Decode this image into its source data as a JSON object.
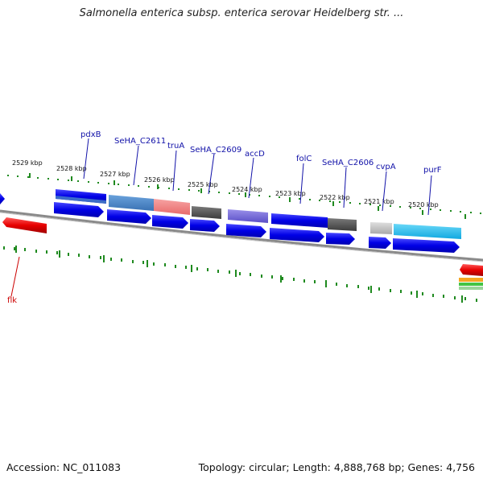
{
  "title": "Salmonella enterica subsp. enterica serovar Heidelberg str. ...",
  "accession": "Accession: NC_011083",
  "summary": "Topology: circular; Length: 4,888,768 bp; Genes: 4,756",
  "scale_labels": [
    "2529 kbp",
    "2528 kbp",
    "2527 kbp",
    "2526 kbp",
    "2525 kbp",
    "2524 kbp",
    "2523 kbp",
    "2522 kbp",
    "2521 kbp",
    "2520 kbp"
  ],
  "gene_labels": [
    "pdxB",
    "SeHA_C2611",
    "truA",
    "SeHA_C2609",
    "accD",
    "folC",
    "SeHA_C2606",
    "cvpA",
    "purF",
    "flk"
  ],
  "colors": {
    "cds_blue": "#0a0ae6",
    "backbone": "#8a8a8a",
    "tick_green": "#1f8a1f",
    "label_blue": "#1010a8",
    "label_red": "#cc0000",
    "feature_red": "#e60000",
    "feature_steelblue": "#4a86c8",
    "feature_salmon": "#f08080",
    "feature_gray": "#5a5a5a",
    "feature_slate": "#7a6fd6",
    "feature_lightgray": "#c8c8c8",
    "feature_cyan": "#28c4f0",
    "feature_orange": "#f5a623",
    "feature_green": "#43c443"
  }
}
